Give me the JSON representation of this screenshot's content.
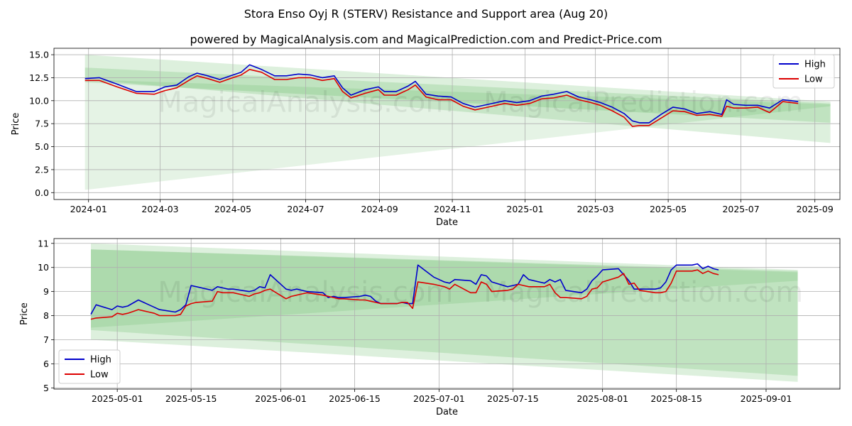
{
  "title": "Stora Enso Oyj R (STERV) Resistance and Support area (Aug 20)",
  "subtitle": "powered by MagicalAnalysis.com and MagicalPrediction.com and Predict-Price.com",
  "watermarks": [
    "MagicalAnalysis.com",
    "MagicalPrediction.com"
  ],
  "colors": {
    "high": "#0000cc",
    "low": "#dd0000",
    "band": "#2ca02c",
    "grid": "#b0b0b0"
  },
  "chart_data": [
    {
      "type": "line",
      "xlabel": "Date",
      "ylabel": "Price",
      "xlim": [
        "2023-12-03",
        "2025-09-22"
      ],
      "ylim": [
        -0.75,
        15.7
      ],
      "x_ticks": [
        "2024-01",
        "2024-03",
        "2024-05",
        "2024-07",
        "2024-09",
        "2024-11",
        "2025-01",
        "2025-03",
        "2025-05",
        "2025-07",
        "2025-09"
      ],
      "x_tick_dates": [
        "2024-01-01",
        "2024-03-01",
        "2024-05-01",
        "2024-07-01",
        "2024-09-01",
        "2024-11-01",
        "2025-01-01",
        "2025-03-01",
        "2025-05-01",
        "2025-07-01",
        "2025-09-01"
      ],
      "y_ticks": [
        "0.0",
        "2.5",
        "5.0",
        "7.5",
        "10.0",
        "12.5",
        "15.0"
      ],
      "y_tick_values": [
        0,
        2.5,
        5,
        7.5,
        10,
        12.5,
        15
      ],
      "grid": true,
      "legend": {
        "placement": "top-right",
        "entries": [
          "High",
          "Low"
        ]
      },
      "bands": [
        {
          "x0": "2023-12-29",
          "x1": "2025-09-14",
          "upper": [
            15.0,
            9.9
          ],
          "lower": [
            12.3,
            5.4
          ]
        },
        {
          "x0": "2023-12-29",
          "x1": "2025-09-14",
          "upper": [
            13.6,
            9.7
          ],
          "lower": [
            12.0,
            7.6
          ]
        },
        {
          "x0": "2023-12-29",
          "x1": "2025-09-14",
          "upper": [
            12.3,
            9.6
          ],
          "lower": [
            0.3,
            9.4
          ]
        }
      ],
      "series": [
        {
          "name": "High",
          "x": [
            "2023-12-29",
            "2024-01-10",
            "2024-01-25",
            "2024-02-10",
            "2024-02-25",
            "2024-03-05",
            "2024-03-15",
            "2024-03-25",
            "2024-04-01",
            "2024-04-10",
            "2024-04-20",
            "2024-05-01",
            "2024-05-08",
            "2024-05-15",
            "2024-05-25",
            "2024-06-05",
            "2024-06-15",
            "2024-06-25",
            "2024-07-05",
            "2024-07-15",
            "2024-07-25",
            "2024-08-01",
            "2024-08-08",
            "2024-08-20",
            "2024-08-31",
            "2024-09-05",
            "2024-09-15",
            "2024-09-25",
            "2024-10-01",
            "2024-10-10",
            "2024-10-20",
            "2024-10-31",
            "2024-11-10",
            "2024-11-20",
            "2024-12-01",
            "2024-12-15",
            "2024-12-25",
            "2025-01-05",
            "2025-01-15",
            "2025-01-25",
            "2025-02-05",
            "2025-02-15",
            "2025-02-25",
            "2025-03-05",
            "2025-03-15",
            "2025-03-25",
            "2025-04-01",
            "2025-04-07",
            "2025-04-15",
            "2025-04-25",
            "2025-05-05",
            "2025-05-15",
            "2025-05-25",
            "2025-06-05",
            "2025-06-15",
            "2025-06-19",
            "2025-06-25",
            "2025-07-05",
            "2025-07-15",
            "2025-07-25",
            "2025-08-05",
            "2025-08-12",
            "2025-08-18"
          ],
          "values": [
            12.4,
            12.5,
            11.8,
            11.0,
            11.0,
            11.5,
            11.7,
            12.6,
            13.0,
            12.7,
            12.3,
            12.8,
            13.1,
            13.9,
            13.4,
            12.7,
            12.7,
            12.9,
            12.8,
            12.5,
            12.7,
            11.4,
            10.6,
            11.2,
            11.5,
            11.0,
            11.0,
            11.6,
            12.1,
            10.7,
            10.5,
            10.4,
            9.7,
            9.3,
            9.6,
            10.0,
            9.8,
            10.0,
            10.5,
            10.7,
            11.0,
            10.4,
            10.1,
            9.8,
            9.3,
            8.6,
            7.8,
            7.6,
            7.6,
            8.5,
            9.3,
            9.1,
            8.6,
            8.8,
            8.5,
            10.1,
            9.6,
            9.5,
            9.5,
            9.2,
            10.1,
            10.0,
            9.9
          ]
        },
        {
          "name": "Low",
          "x": [
            "2023-12-29",
            "2024-01-10",
            "2024-01-25",
            "2024-02-10",
            "2024-02-25",
            "2024-03-05",
            "2024-03-15",
            "2024-03-25",
            "2024-04-01",
            "2024-04-10",
            "2024-04-20",
            "2024-05-01",
            "2024-05-08",
            "2024-05-15",
            "2024-05-25",
            "2024-06-05",
            "2024-06-15",
            "2024-06-25",
            "2024-07-05",
            "2024-07-15",
            "2024-07-25",
            "2024-08-01",
            "2024-08-08",
            "2024-08-20",
            "2024-08-31",
            "2024-09-05",
            "2024-09-15",
            "2024-09-25",
            "2024-10-01",
            "2024-10-10",
            "2024-10-20",
            "2024-10-31",
            "2024-11-10",
            "2024-11-20",
            "2024-12-01",
            "2024-12-15",
            "2024-12-25",
            "2025-01-05",
            "2025-01-15",
            "2025-01-25",
            "2025-02-05",
            "2025-02-15",
            "2025-02-25",
            "2025-03-05",
            "2025-03-15",
            "2025-03-25",
            "2025-04-01",
            "2025-04-07",
            "2025-04-15",
            "2025-04-25",
            "2025-05-05",
            "2025-05-15",
            "2025-05-25",
            "2025-06-05",
            "2025-06-15",
            "2025-06-19",
            "2025-06-25",
            "2025-07-05",
            "2025-07-15",
            "2025-07-25",
            "2025-08-05",
            "2025-08-12",
            "2025-08-18"
          ],
          "values": [
            12.2,
            12.2,
            11.5,
            10.8,
            10.7,
            11.1,
            11.4,
            12.2,
            12.7,
            12.4,
            12.0,
            12.5,
            12.8,
            13.4,
            13.1,
            12.3,
            12.3,
            12.5,
            12.5,
            12.2,
            12.4,
            11.0,
            10.3,
            10.8,
            11.2,
            10.6,
            10.6,
            11.2,
            11.7,
            10.4,
            10.1,
            10.1,
            9.4,
            9.0,
            9.3,
            9.7,
            9.5,
            9.7,
            10.2,
            10.3,
            10.6,
            10.1,
            9.8,
            9.5,
            8.9,
            8.2,
            7.2,
            7.3,
            7.3,
            8.1,
            8.9,
            8.8,
            8.4,
            8.5,
            8.3,
            9.4,
            9.2,
            9.2,
            9.3,
            8.7,
            9.9,
            9.8,
            9.7
          ]
        }
      ]
    },
    {
      "type": "line",
      "xlabel": "Date",
      "ylabel": "Price",
      "xlim": [
        "2025-04-19",
        "2025-09-15"
      ],
      "ylim": [
        4.95,
        11.2
      ],
      "x_ticks": [
        "2025-05-01",
        "2025-05-15",
        "2025-06-01",
        "2025-06-15",
        "2025-07-01",
        "2025-07-15",
        "2025-08-01",
        "2025-08-15",
        "2025-09-01"
      ],
      "x_tick_dates": [
        "2025-05-01",
        "2025-05-15",
        "2025-06-01",
        "2025-06-15",
        "2025-07-01",
        "2025-07-15",
        "2025-08-01",
        "2025-08-15",
        "2025-09-01"
      ],
      "y_ticks": [
        "5",
        "6",
        "7",
        "8",
        "9",
        "10",
        "11"
      ],
      "y_tick_values": [
        5,
        6,
        7,
        8,
        9,
        10,
        11
      ],
      "grid": true,
      "legend": {
        "placement": "bottom-left",
        "entries": [
          "High",
          "Low"
        ]
      },
      "bands": [
        {
          "x0": "2025-04-26",
          "x1": "2025-09-07",
          "upper": [
            11.0,
            9.9
          ],
          "lower": [
            7.0,
            5.25
          ]
        },
        {
          "x0": "2025-04-26",
          "x1": "2025-09-07",
          "upper": [
            10.75,
            9.85
          ],
          "lower": [
            7.4,
            5.5
          ]
        },
        {
          "x0": "2025-04-26",
          "x1": "2025-09-07",
          "upper": [
            10.75,
            9.8
          ],
          "lower": [
            7.5,
            9.45
          ]
        }
      ],
      "series": [
        {
          "name": "High",
          "x": [
            "2025-04-26",
            "2025-04-27",
            "2025-04-30",
            "2025-05-01",
            "2025-05-02",
            "2025-05-03",
            "2025-05-05",
            "2025-05-06",
            "2025-05-07",
            "2025-05-08",
            "2025-05-09",
            "2025-05-12",
            "2025-05-13",
            "2025-05-14",
            "2025-05-15",
            "2025-05-16",
            "2025-05-19",
            "2025-05-20",
            "2025-05-21",
            "2025-05-22",
            "2025-05-23",
            "2025-05-26",
            "2025-05-27",
            "2025-05-28",
            "2025-05-29",
            "2025-05-30",
            "2025-06-02",
            "2025-06-03",
            "2025-06-04",
            "2025-06-05",
            "2025-06-06",
            "2025-06-09",
            "2025-06-10",
            "2025-06-11",
            "2025-06-12",
            "2025-06-13",
            "2025-06-16",
            "2025-06-17",
            "2025-06-18",
            "2025-06-19",
            "2025-06-20",
            "2025-06-23",
            "2025-06-24",
            "2025-06-25",
            "2025-06-26",
            "2025-06-27",
            "2025-06-30",
            "2025-07-01",
            "2025-07-02",
            "2025-07-03",
            "2025-07-04",
            "2025-07-07",
            "2025-07-08",
            "2025-07-09",
            "2025-07-10",
            "2025-07-11",
            "2025-07-14",
            "2025-07-15",
            "2025-07-16",
            "2025-07-17",
            "2025-07-18",
            "2025-07-21",
            "2025-07-22",
            "2025-07-23",
            "2025-07-24",
            "2025-07-25",
            "2025-07-28",
            "2025-07-29",
            "2025-07-30",
            "2025-07-31",
            "2025-08-01",
            "2025-08-04",
            "2025-08-05",
            "2025-08-06",
            "2025-08-07",
            "2025-08-08",
            "2025-08-11",
            "2025-08-12",
            "2025-08-13",
            "2025-08-14",
            "2025-08-15",
            "2025-08-18"
          ],
          "values": [
            8.05,
            8.45,
            8.25,
            8.4,
            8.35,
            8.4,
            8.65,
            8.55,
            8.45,
            8.35,
            8.25,
            8.15,
            8.25,
            8.45,
            9.25,
            9.2,
            9.05,
            9.2,
            9.15,
            9.1,
            9.1,
            9.0,
            9.05,
            9.2,
            9.15,
            9.7,
            9.1,
            9.05,
            9.1,
            9.05,
            9.0,
            8.95,
            8.75,
            8.8,
            8.75,
            8.75,
            8.8,
            8.85,
            8.8,
            8.6,
            8.5,
            8.5,
            8.55,
            8.5,
            8.5,
            10.1,
            9.6,
            9.5,
            9.4,
            9.35,
            9.5,
            9.45,
            9.3,
            9.7,
            9.65,
            9.4,
            9.2,
            9.25,
            9.3,
            9.7,
            9.5,
            9.35,
            9.5,
            9.4,
            9.5,
            9.05,
            8.95,
            9.1,
            9.45,
            9.65,
            9.9,
            9.95,
            9.7,
            9.45,
            9.1,
            9.1,
            9.1,
            9.15,
            9.4,
            9.9,
            10.1,
            10.1
          ],
          "tail": [
            10.15,
            9.95,
            10.05,
            9.95,
            9.9
          ]
        },
        {
          "name": "Low",
          "x": [
            "2025-04-26",
            "2025-04-27",
            "2025-04-30",
            "2025-05-01",
            "2025-05-02",
            "2025-05-03",
            "2025-05-05",
            "2025-05-06",
            "2025-05-07",
            "2025-05-08",
            "2025-05-09",
            "2025-05-12",
            "2025-05-13",
            "2025-05-14",
            "2025-05-15",
            "2025-05-16",
            "2025-05-19",
            "2025-05-20",
            "2025-05-21",
            "2025-05-22",
            "2025-05-23",
            "2025-05-26",
            "2025-05-27",
            "2025-05-28",
            "2025-05-29",
            "2025-05-30",
            "2025-06-02",
            "2025-06-03",
            "2025-06-04",
            "2025-06-05",
            "2025-06-06",
            "2025-06-09",
            "2025-06-10",
            "2025-06-11",
            "2025-06-12",
            "2025-06-13",
            "2025-06-16",
            "2025-06-17",
            "2025-06-18",
            "2025-06-19",
            "2025-06-20",
            "2025-06-23",
            "2025-06-24",
            "2025-06-25",
            "2025-06-26",
            "2025-06-27",
            "2025-06-30",
            "2025-07-01",
            "2025-07-02",
            "2025-07-03",
            "2025-07-04",
            "2025-07-07",
            "2025-07-08",
            "2025-07-09",
            "2025-07-10",
            "2025-07-11",
            "2025-07-14",
            "2025-07-15",
            "2025-07-16",
            "2025-07-17",
            "2025-07-18",
            "2025-07-21",
            "2025-07-22",
            "2025-07-23",
            "2025-07-24",
            "2025-07-25",
            "2025-07-28",
            "2025-07-29",
            "2025-07-30",
            "2025-07-31",
            "2025-08-01",
            "2025-08-04",
            "2025-08-05",
            "2025-08-06",
            "2025-08-07",
            "2025-08-08",
            "2025-08-11",
            "2025-08-12",
            "2025-08-13",
            "2025-08-14",
            "2025-08-15",
            "2025-08-18"
          ],
          "values": [
            7.85,
            7.9,
            7.95,
            8.1,
            8.05,
            8.1,
            8.25,
            8.2,
            8.15,
            8.1,
            8.0,
            8.0,
            8.05,
            8.4,
            8.5,
            8.55,
            8.6,
            9.0,
            8.95,
            8.95,
            8.95,
            8.8,
            8.9,
            8.95,
            9.05,
            9.1,
            8.7,
            8.8,
            8.85,
            8.9,
            8.95,
            8.85,
            8.8,
            8.75,
            8.7,
            8.7,
            8.65,
            8.65,
            8.6,
            8.55,
            8.5,
            8.5,
            8.55,
            8.55,
            8.3,
            9.4,
            9.3,
            9.25,
            9.2,
            9.1,
            9.3,
            8.95,
            8.95,
            9.4,
            9.3,
            9.0,
            9.05,
            9.1,
            9.3,
            9.25,
            9.2,
            9.2,
            9.3,
            8.95,
            8.75,
            8.75,
            8.7,
            8.8,
            9.1,
            9.15,
            9.4,
            9.6,
            9.75,
            9.3,
            9.35,
            9.05,
            8.95,
            8.95,
            9.0,
            9.35,
            9.85,
            9.85
          ],
          "tail": [
            9.9,
            9.75,
            9.85,
            9.75,
            9.7
          ]
        }
      ]
    }
  ]
}
